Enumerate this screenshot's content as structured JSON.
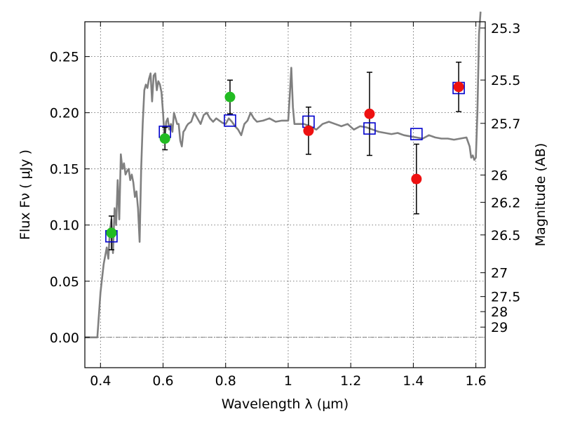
{
  "chart_data": {
    "type": "scatter",
    "xlabel": "Wavelength  λ (μm)",
    "ylabel": "Flux  Fν  ( μJy )",
    "y2label": "Magnitude (AB)",
    "xlim": [
      0.35,
      1.63
    ],
    "ylim": [
      -0.027,
      0.281
    ],
    "grid": true,
    "xticks": [
      0.4,
      0.6,
      0.8,
      1.0,
      1.2,
      1.4,
      1.6
    ],
    "xtick_labels": [
      "0.4",
      "0.6",
      "0.8",
      "1",
      "1.2",
      "1.4",
      "1.6"
    ],
    "yticks": [
      0.0,
      0.05,
      0.1,
      0.15,
      0.2,
      0.25
    ],
    "ytick_labels": [
      "0.00",
      "0.05",
      "0.10",
      "0.15",
      "0.20",
      "0.25"
    ],
    "mag_ticks": [
      25.3,
      25.5,
      25.7,
      26,
      26.2,
      26.5,
      27,
      27.5,
      28,
      29
    ],
    "mag_tick_labels": [
      "25.3",
      "25.5",
      "25.7",
      "26",
      "26.2",
      "26.5",
      "27",
      "27.5",
      "28",
      "29"
    ],
    "colors": {
      "model_line": "#808080",
      "green_points": "#22bb22",
      "red_points": "#ee1111",
      "model_boxes": "#0000cc",
      "error_bars": "#000000"
    },
    "series": [
      {
        "marker": "circle",
        "color": "#22bb22",
        "points": [
          {
            "x": 0.435,
            "y": 0.093,
            "yerr": 0.015
          },
          {
            "x": 0.606,
            "y": 0.177,
            "yerr": 0.01
          },
          {
            "x": 0.814,
            "y": 0.214,
            "yerr": 0.015
          }
        ]
      },
      {
        "marker": "circle",
        "color": "#ee1111",
        "points": [
          {
            "x": 1.065,
            "y": 0.184,
            "yerr": 0.021
          },
          {
            "x": 1.26,
            "y": 0.199,
            "yerr": 0.037
          },
          {
            "x": 1.41,
            "y": 0.141,
            "yerr": 0.031
          },
          {
            "x": 1.545,
            "y": 0.223,
            "yerr": 0.022
          }
        ]
      },
      {
        "marker": "square",
        "color": "#0000cc",
        "points": [
          {
            "x": 0.435,
            "y": 0.09
          },
          {
            "x": 0.606,
            "y": 0.183
          },
          {
            "x": 0.814,
            "y": 0.193
          },
          {
            "x": 1.065,
            "y": 0.192
          },
          {
            "x": 1.26,
            "y": 0.186
          },
          {
            "x": 1.41,
            "y": 0.181
          },
          {
            "x": 1.545,
            "y": 0.222
          }
        ]
      },
      {
        "marker": "line",
        "color": "#808080",
        "x": [
          0.35,
          0.39,
          0.4,
          0.41,
          0.42,
          0.425,
          0.43,
          0.435,
          0.44,
          0.445,
          0.45,
          0.455,
          0.46,
          0.465,
          0.47,
          0.475,
          0.48,
          0.485,
          0.49,
          0.495,
          0.5,
          0.505,
          0.51,
          0.515,
          0.52,
          0.525,
          0.53,
          0.535,
          0.54,
          0.545,
          0.55,
          0.555,
          0.56,
          0.565,
          0.57,
          0.575,
          0.58,
          0.585,
          0.59,
          0.595,
          0.6,
          0.605,
          0.61,
          0.615,
          0.62,
          0.625,
          0.63,
          0.635,
          0.64,
          0.645,
          0.65,
          0.655,
          0.66,
          0.665,
          0.67,
          0.675,
          0.68,
          0.69,
          0.7,
          0.71,
          0.72,
          0.73,
          0.74,
          0.75,
          0.76,
          0.77,
          0.78,
          0.79,
          0.8,
          0.81,
          0.82,
          0.83,
          0.84,
          0.85,
          0.86,
          0.87,
          0.88,
          0.89,
          0.9,
          0.92,
          0.94,
          0.96,
          0.98,
          1.0,
          1.005,
          1.01,
          1.015,
          1.02,
          1.03,
          1.05,
          1.07,
          1.09,
          1.11,
          1.13,
          1.15,
          1.17,
          1.19,
          1.21,
          1.23,
          1.25,
          1.27,
          1.29,
          1.31,
          1.33,
          1.35,
          1.37,
          1.39,
          1.41,
          1.43,
          1.45,
          1.47,
          1.49,
          1.51,
          1.53,
          1.55,
          1.57,
          1.58,
          1.585,
          1.59,
          1.595,
          1.6,
          1.605,
          1.61,
          1.615
        ],
        "y": [
          0.0,
          0.0,
          0.04,
          0.065,
          0.08,
          0.07,
          0.095,
          0.105,
          0.075,
          0.115,
          0.1,
          0.14,
          0.105,
          0.163,
          0.15,
          0.155,
          0.145,
          0.148,
          0.15,
          0.14,
          0.145,
          0.138,
          0.125,
          0.13,
          0.115,
          0.085,
          0.15,
          0.19,
          0.22,
          0.225,
          0.222,
          0.23,
          0.235,
          0.21,
          0.233,
          0.235,
          0.22,
          0.228,
          0.225,
          0.218,
          0.2,
          0.175,
          0.192,
          0.195,
          0.185,
          0.19,
          0.183,
          0.2,
          0.195,
          0.19,
          0.19,
          0.175,
          0.17,
          0.183,
          0.185,
          0.188,
          0.19,
          0.192,
          0.2,
          0.195,
          0.19,
          0.198,
          0.2,
          0.195,
          0.192,
          0.195,
          0.193,
          0.191,
          0.19,
          0.195,
          0.192,
          0.188,
          0.185,
          0.18,
          0.19,
          0.193,
          0.2,
          0.195,
          0.192,
          0.193,
          0.195,
          0.192,
          0.193,
          0.193,
          0.215,
          0.24,
          0.205,
          0.19,
          0.19,
          0.19,
          0.188,
          0.185,
          0.19,
          0.192,
          0.19,
          0.188,
          0.19,
          0.185,
          0.188,
          0.187,
          0.185,
          0.183,
          0.182,
          0.181,
          0.182,
          0.18,
          0.179,
          0.178,
          0.177,
          0.18,
          0.178,
          0.177,
          0.177,
          0.176,
          0.177,
          0.178,
          0.17,
          0.16,
          0.162,
          0.158,
          0.16,
          0.2,
          0.27,
          0.29
        ]
      }
    ]
  }
}
